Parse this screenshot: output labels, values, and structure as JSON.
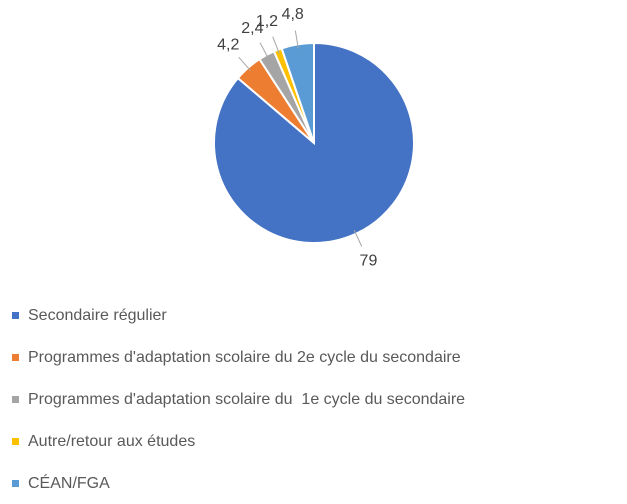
{
  "chart_data": {
    "type": "pie",
    "categories": [
      "Secondaire régulier",
      "Programmes d'adaptation scolaire du 2e cycle du secondaire",
      "Programmes d'adaptation scolaire du  1e cycle du secondaire",
      "Autre/retour aux études",
      "CÉAN/FGA"
    ],
    "values": [
      79,
      4.2,
      2.4,
      1.2,
      4.8
    ],
    "value_labels": [
      "79",
      "4,2",
      "2,4",
      "1,2",
      "4,8"
    ],
    "colors": [
      "#4472c4",
      "#ed7d31",
      "#a5a5a5",
      "#ffc000",
      "#5b9bd5"
    ],
    "legend": "bottom"
  }
}
